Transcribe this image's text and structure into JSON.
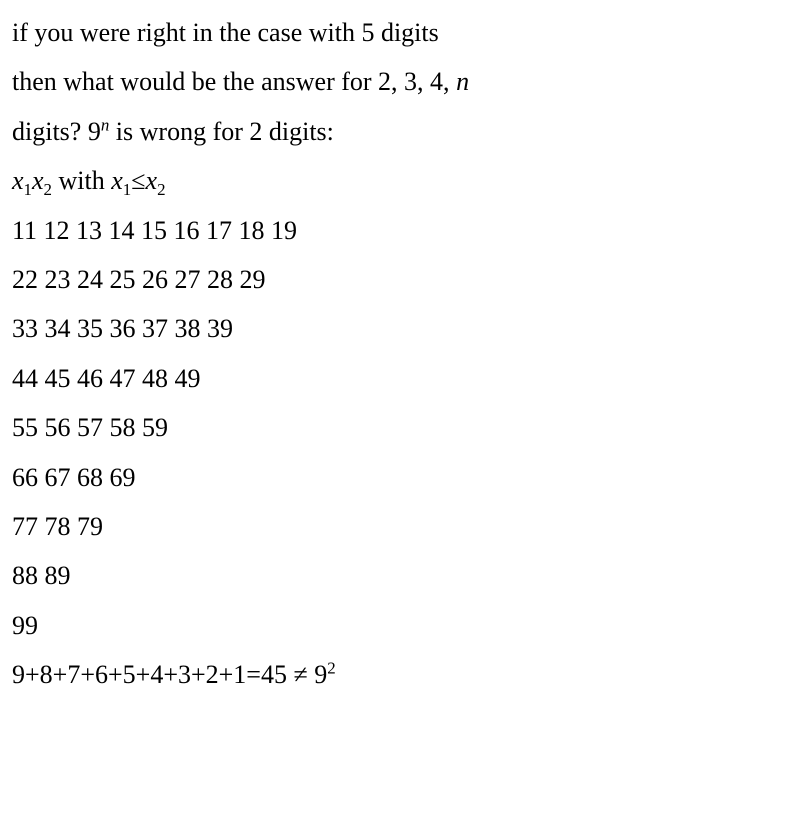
{
  "text": {
    "line1_a": "if you were right in the case with 5 digits",
    "line2_a": "then what would be the answer for 2, 3, 4, ",
    "line2_n": "n",
    "line3_a": "digits? 9",
    "line3_exp": "n",
    "line3_b": " is wrong for 2 digits:",
    "line4_x": "x",
    "line4_sub1": "1",
    "line4_sub2": "2",
    "line4_with": " with ",
    "line4_le": "≤",
    "row1": "11 12 13 14 15 16 17 18 19",
    "row2": "22 23 24 25 26 27 28 29",
    "row3": "33 34 35 36 37 38 39",
    "row4": "44 45 46 47 48 49",
    "row5": "55 56 57 58 59",
    "row6": "66 67 68 69",
    "row7": "77 78 79",
    "row8": "88 89",
    "row9": "99",
    "sum_a": "9+8+7+6+5+4+3+2+1=45 ≠ 9",
    "sum_exp": "2"
  },
  "style": {
    "background_color": "#ffffff",
    "text_color": "#000000",
    "font_size": 26,
    "line_height": 1.9,
    "font_family": "Georgia, Times New Roman, serif"
  }
}
